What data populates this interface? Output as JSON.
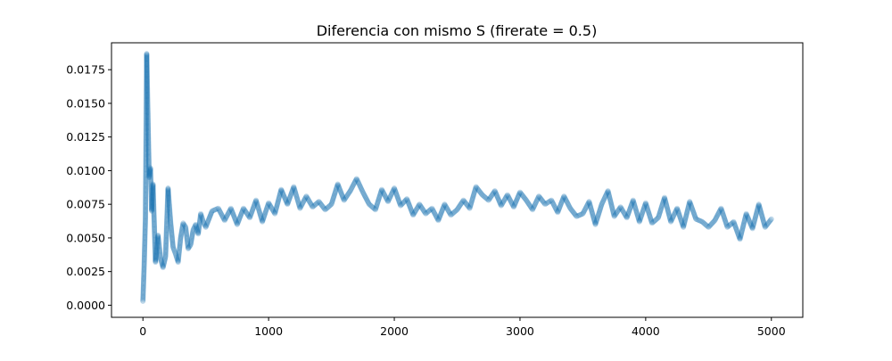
{
  "chart_data": {
    "type": "scatter",
    "title": "Diferencia con mismo S (firerate = 0.5)",
    "xlabel": "",
    "ylabel": "",
    "xlim": [
      -250,
      5250
    ],
    "ylim": [
      -0.0009,
      0.0195
    ],
    "xticks": [
      0,
      1000,
      2000,
      3000,
      4000,
      5000
    ],
    "xtick_labels": [
      "0",
      "1000",
      "2000",
      "3000",
      "4000",
      "5000"
    ],
    "yticks": [
      0.0,
      0.0025,
      0.005,
      0.0075,
      0.01,
      0.0125,
      0.015,
      0.0175
    ],
    "ytick_labels": [
      "0.0000",
      "0.0025",
      "0.0050",
      "0.0075",
      "0.0100",
      "0.0125",
      "0.0150",
      "0.0175"
    ],
    "grid": false,
    "legend": "none",
    "marker_color": "#1f77b4",
    "marker_alpha": 0.15,
    "series": [
      {
        "x": [
          0,
          10,
          20,
          30,
          40,
          50,
          60,
          70,
          80,
          100,
          120,
          140,
          160,
          180,
          200,
          220,
          240,
          260,
          280,
          300,
          320,
          340,
          360,
          380,
          400,
          420,
          440,
          460,
          480,
          500,
          550,
          600,
          650,
          700,
          750,
          800,
          850,
          900,
          950,
          1000,
          1050,
          1100,
          1150,
          1200,
          1250,
          1300,
          1350,
          1400,
          1450,
          1500,
          1550,
          1600,
          1650,
          1700,
          1750,
          1800,
          1850,
          1900,
          1950,
          2000,
          2050,
          2100,
          2150,
          2200,
          2250,
          2300,
          2350,
          2400,
          2450,
          2500,
          2550,
          2600,
          2650,
          2700,
          2750,
          2800,
          2850,
          2900,
          2950,
          3000,
          3050,
          3100,
          3150,
          3200,
          3250,
          3300,
          3350,
          3400,
          3450,
          3500,
          3550,
          3600,
          3650,
          3700,
          3750,
          3800,
          3850,
          3900,
          3950,
          4000,
          4050,
          4100,
          4150,
          4200,
          4250,
          4300,
          4350,
          4400,
          4450,
          4500,
          4550,
          4600,
          4650,
          4700,
          4750,
          4800,
          4850,
          4900,
          4950,
          5000
        ],
        "y": [
          0.0003,
          0.003,
          0.0065,
          0.0187,
          0.014,
          0.0095,
          0.0102,
          0.007,
          0.009,
          0.0032,
          0.0052,
          0.0035,
          0.0028,
          0.0036,
          0.0087,
          0.0062,
          0.0043,
          0.0038,
          0.0032,
          0.005,
          0.0061,
          0.0058,
          0.0042,
          0.0045,
          0.0056,
          0.006,
          0.0053,
          0.0068,
          0.0062,
          0.0058,
          0.007,
          0.0072,
          0.0063,
          0.0072,
          0.006,
          0.0072,
          0.0065,
          0.0078,
          0.0062,
          0.0076,
          0.0068,
          0.0086,
          0.0075,
          0.0088,
          0.0072,
          0.0081,
          0.0073,
          0.0077,
          0.0071,
          0.0075,
          0.009,
          0.0078,
          0.0085,
          0.0094,
          0.0084,
          0.0075,
          0.0071,
          0.0086,
          0.0077,
          0.0087,
          0.0074,
          0.0079,
          0.0067,
          0.0075,
          0.0068,
          0.0072,
          0.0063,
          0.0075,
          0.0067,
          0.0071,
          0.0078,
          0.0072,
          0.0088,
          0.0082,
          0.0078,
          0.0085,
          0.0074,
          0.0082,
          0.0073,
          0.0084,
          0.0078,
          0.0071,
          0.0081,
          0.0075,
          0.0078,
          0.0069,
          0.0081,
          0.0072,
          0.0066,
          0.0068,
          0.0077,
          0.006,
          0.0075,
          0.0085,
          0.0066,
          0.0073,
          0.0065,
          0.0078,
          0.0062,
          0.0076,
          0.0061,
          0.0065,
          0.008,
          0.0062,
          0.0072,
          0.0058,
          0.0077,
          0.0064,
          0.0062,
          0.0058,
          0.0063,
          0.0072,
          0.0058,
          0.0062,
          0.0049,
          0.0068,
          0.0057,
          0.0075,
          0.0058,
          0.0064
        ]
      }
    ]
  }
}
